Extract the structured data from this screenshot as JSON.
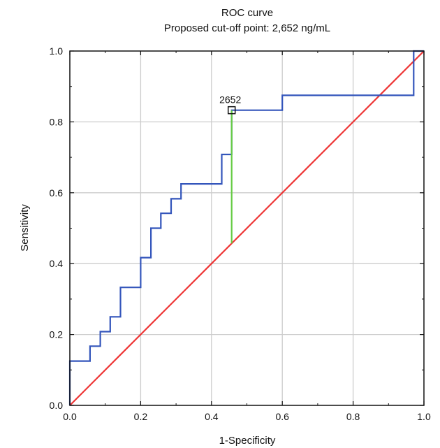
{
  "chart_data": {
    "type": "line",
    "title": "ROC curve",
    "subtitle": "Proposed cut-off point: 2,652 ng/mL",
    "xlabel": "1-Specificity",
    "ylabel": "Sensitivity",
    "xlim": [
      0,
      1
    ],
    "ylim": [
      0,
      1
    ],
    "xticks": [
      "0.0",
      "0.2",
      "0.4",
      "0.6",
      "0.8",
      "1.0"
    ],
    "yticks": [
      "0.0",
      "0.2",
      "0.4",
      "0.6",
      "0.8",
      "1.0"
    ],
    "grid": true,
    "series": [
      {
        "kind": "roc",
        "color": "#3355bb",
        "x": [
          0.0,
          0.0,
          0.057,
          0.057,
          0.086,
          0.086,
          0.114,
          0.114,
          0.143,
          0.143,
          0.2,
          0.2,
          0.229,
          0.229,
          0.257,
          0.257,
          0.286,
          0.286,
          0.314,
          0.314,
          0.429,
          0.429,
          0.457,
          0.457,
          0.6,
          0.6,
          0.971,
          0.971,
          1.0
        ],
        "y": [
          0.0,
          0.125,
          0.125,
          0.167,
          0.167,
          0.208,
          0.208,
          0.25,
          0.25,
          0.333,
          0.333,
          0.417,
          0.417,
          0.5,
          0.5,
          0.542,
          0.542,
          0.583,
          0.583,
          0.625,
          0.625,
          0.708,
          0.708,
          0.833,
          0.833,
          0.875,
          0.875,
          1.0,
          1.0
        ]
      },
      {
        "kind": "reference",
        "color": "#ee3333",
        "x": [
          0.0,
          1.0
        ],
        "y": [
          0.0,
          1.0
        ]
      },
      {
        "kind": "youden",
        "color": "#66cc44",
        "x": [
          0.457,
          0.457
        ],
        "y": [
          0.457,
          0.833
        ]
      }
    ],
    "cutoff_point": {
      "x": 0.457,
      "y": 0.833,
      "label": "2652"
    }
  }
}
